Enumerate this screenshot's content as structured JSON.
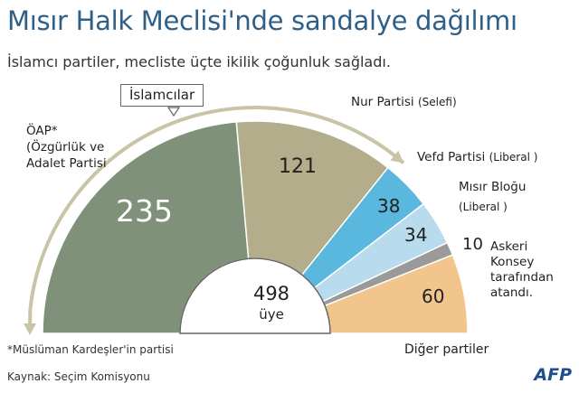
{
  "title": "Mısır Halk Meclisi'nde sandalye dağılımı",
  "subtitle": "İslamcı partiler, mecliste üçte ikilik çoğunluk sağladı.",
  "islamists_label": "İslamcılar",
  "center": {
    "value": "498",
    "unit": "üye"
  },
  "footnote": "*Müslüman Kardeşler'in partisi",
  "source": "Kaynak: Seçim Komisyonu",
  "logo": "AFP",
  "colors": {
    "oap": "#7f9178",
    "nur": "#b3ad8b",
    "vefd": "#5ab7dd",
    "misir": "#b8dcee",
    "askeri": "#9a9a9a",
    "diger": "#f1c58c",
    "arrow": "#c9c4a5"
  },
  "chart_data": {
    "type": "pie",
    "subtype": "semicircle",
    "total": 498,
    "slices": [
      {
        "key": "oap",
        "label_lines": [
          "ÖAP*",
          "(Özgürlük ve",
          "Adalet Partisi"
        ],
        "value": 235,
        "color": "#7f9178"
      },
      {
        "key": "nur",
        "label": "Nur Partisi",
        "sub": "(Selefi)",
        "value": 121,
        "color": "#b3ad8b"
      },
      {
        "key": "vefd",
        "label": "Vefd Partisi",
        "sub": "(Liberal )",
        "value": 38,
        "color": "#5ab7dd"
      },
      {
        "key": "misir",
        "label": "Mısır Bloğu",
        "sub": "(Liberal )",
        "value": 34,
        "color": "#b8dcee"
      },
      {
        "key": "askeri",
        "label_lines": [
          "Askeri",
          "Konsey",
          "tarafından",
          "atandı."
        ],
        "value": 10,
        "color": "#9a9a9a"
      },
      {
        "key": "diger",
        "label": "Diğer partiler",
        "value": 60,
        "color": "#f1c58c"
      }
    ]
  }
}
